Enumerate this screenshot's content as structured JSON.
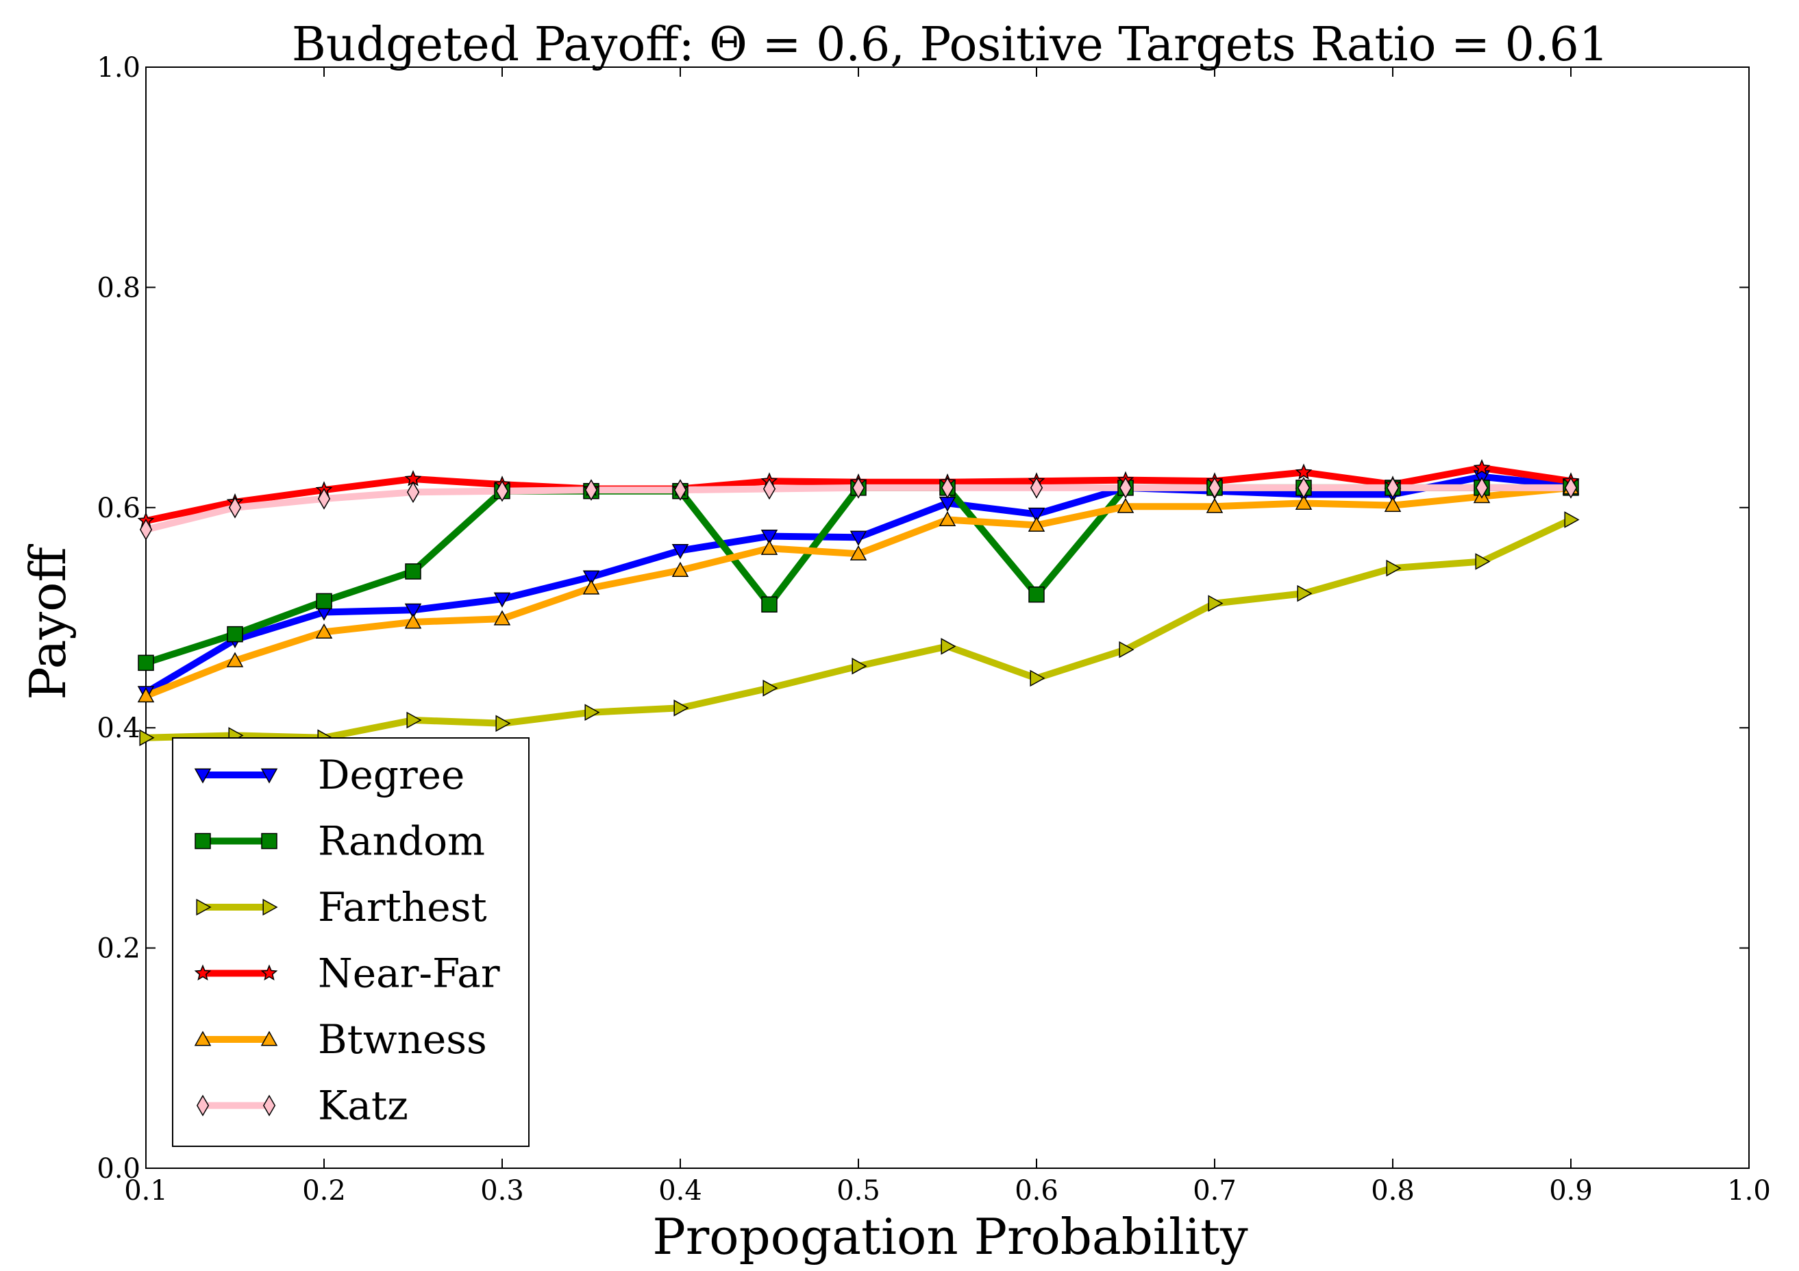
{
  "chart_data": {
    "type": "line",
    "title": "Budgeted Payoff: Θ = 0.6, Positive Targets Ratio = 0.61",
    "xlabel": "Propogation Probability",
    "ylabel": "Payoff",
    "xlim": [
      0.1,
      1.0
    ],
    "ylim": [
      0.0,
      1.0
    ],
    "xticks": [
      "0.1",
      "0.2",
      "0.3",
      "0.4",
      "0.5",
      "0.6",
      "0.7",
      "0.8",
      "0.9",
      "1.0"
    ],
    "yticks": [
      "0.0",
      "0.2",
      "0.4",
      "0.6",
      "0.8",
      "1.0"
    ],
    "grid": false,
    "legend_position": "lower-left",
    "x": [
      0.1,
      0.15,
      0.2,
      0.25,
      0.3,
      0.35,
      0.4,
      0.45,
      0.5,
      0.55,
      0.6,
      0.65,
      0.7,
      0.75,
      0.8,
      0.85,
      0.9
    ],
    "series": [
      {
        "name": "Degree",
        "color": "#0000ff",
        "marker": "triangle-down",
        "values": [
          0.432,
          0.48,
          0.505,
          0.507,
          0.517,
          0.537,
          0.561,
          0.574,
          0.573,
          0.604,
          0.594,
          0.618,
          0.615,
          0.612,
          0.612,
          0.628,
          0.62
        ]
      },
      {
        "name": "Random",
        "color": "#008000",
        "marker": "square",
        "values": [
          0.459,
          0.485,
          0.515,
          0.542,
          0.615,
          0.615,
          0.615,
          0.512,
          0.618,
          0.618,
          0.521,
          0.618,
          0.618,
          0.618,
          0.618,
          0.618,
          0.618
        ]
      },
      {
        "name": "Farthest",
        "color": "#bfbf00",
        "marker": "triangle-right",
        "values": [
          0.391,
          0.393,
          0.391,
          0.407,
          0.404,
          0.414,
          0.418,
          0.436,
          0.456,
          0.474,
          0.445,
          0.471,
          0.513,
          0.522,
          0.545,
          0.551,
          0.589
        ]
      },
      {
        "name": "Near-Far",
        "color": "#ff0000",
        "marker": "star",
        "values": [
          0.588,
          0.605,
          0.616,
          0.626,
          0.621,
          0.617,
          0.617,
          0.624,
          0.623,
          0.623,
          0.624,
          0.625,
          0.624,
          0.632,
          0.621,
          0.636,
          0.624
        ]
      },
      {
        "name": "Btwness",
        "color": "#ffa500",
        "marker": "triangle-up",
        "values": [
          0.429,
          0.461,
          0.487,
          0.496,
          0.499,
          0.527,
          0.543,
          0.563,
          0.558,
          0.589,
          0.584,
          0.601,
          0.601,
          0.604,
          0.602,
          0.61,
          0.618
        ]
      },
      {
        "name": "Katz",
        "color": "#ffc0cb",
        "marker": "diamond",
        "values": [
          0.58,
          0.6,
          0.608,
          0.614,
          0.615,
          0.616,
          0.616,
          0.617,
          0.618,
          0.618,
          0.618,
          0.618,
          0.618,
          0.618,
          0.618,
          0.618,
          0.618
        ]
      }
    ]
  }
}
